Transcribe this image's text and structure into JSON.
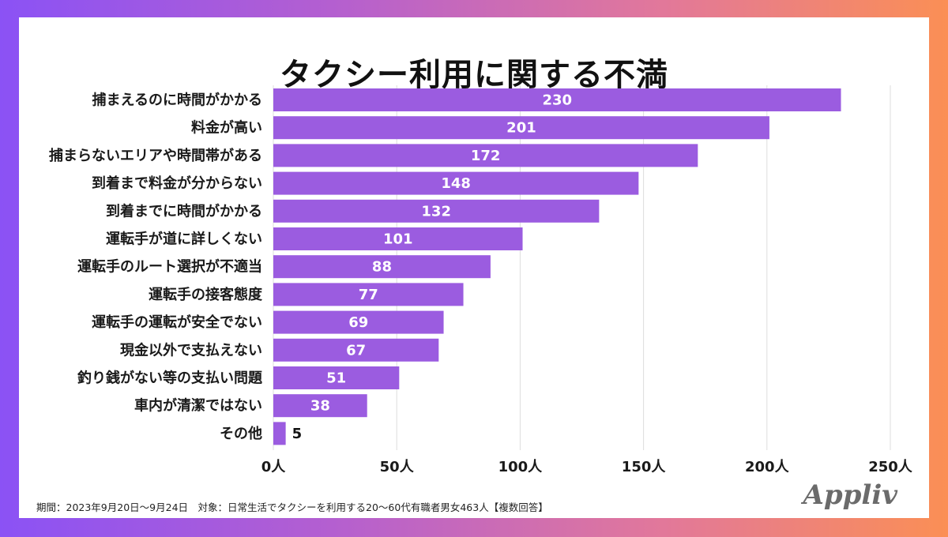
{
  "title": "タクシー利用に関する不満",
  "footnote": "期間：2023年9月20日〜9月24日　対象：日常生活でタクシーを利用する20〜60代有職者男女463人【複数回答】",
  "logo": "Appliv",
  "colors": {
    "bar": "#9b5ce0",
    "bar_label": "#ffffff",
    "grid": "#dddddd"
  },
  "chart_data": {
    "type": "bar",
    "orientation": "horizontal",
    "title": "タクシー利用に関する不満",
    "categories": [
      "捕まえるのに時間がかかる",
      "料金が高い",
      "捕まらないエリアや時間帯がある",
      "到着まで料金が分からない",
      "到着までに時間がかかる",
      "運転手が道に詳しくない",
      "運転手のルート選択が不適当",
      "運転手の接客態度",
      "運転手の運転が安全でない",
      "現金以外で支払えない",
      "釣り銭がない等の支払い問題",
      "車内が清潔ではない",
      "その他"
    ],
    "values": [
      230,
      201,
      172,
      148,
      132,
      101,
      88,
      77,
      69,
      67,
      51,
      38,
      5
    ],
    "xlim": [
      0,
      250
    ],
    "ticks": [
      0,
      50,
      100,
      150,
      200,
      250
    ],
    "tick_labels": [
      "0人",
      "50人",
      "100人",
      "150人",
      "200人",
      "250人"
    ],
    "grid": true,
    "legend": "none"
  }
}
